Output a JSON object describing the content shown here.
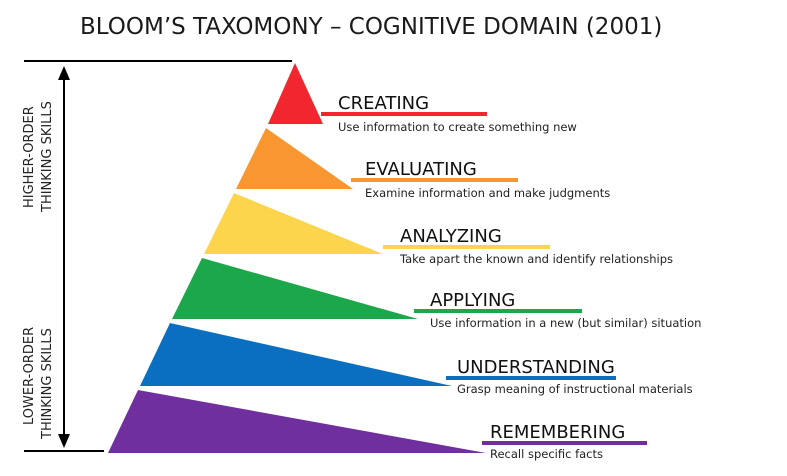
{
  "title": "BLOOM’S TAXOMONY – COGNITIVE DOMAIN (2001)",
  "side_labels": {
    "higher_order": [
      "HIGHER-ORDER",
      "THINKING SKILLS"
    ],
    "lower_order": [
      "LOWER-ORDER",
      "THINKING SKILLS"
    ]
  },
  "levels": [
    {
      "name": "CREATING",
      "description": "Use information to create something new",
      "color": "#f1262e"
    },
    {
      "name": "EVALUATING",
      "description": "Examine information and make judgments",
      "color": "#f8972f"
    },
    {
      "name": "ANALYZING",
      "description": "Take apart the known and identify relationships",
      "color": "#fdd54d"
    },
    {
      "name": "APPLYING",
      "description": "Use information in a new (but similar) situation",
      "color": "#1ba84a"
    },
    {
      "name": "UNDERSTANDING",
      "description": "Grasp meaning of instructional materials",
      "color": "#0a6fc0"
    },
    {
      "name": "REMEMBERING",
      "description": "Recall specific facts",
      "color": "#6f2f9e"
    }
  ]
}
